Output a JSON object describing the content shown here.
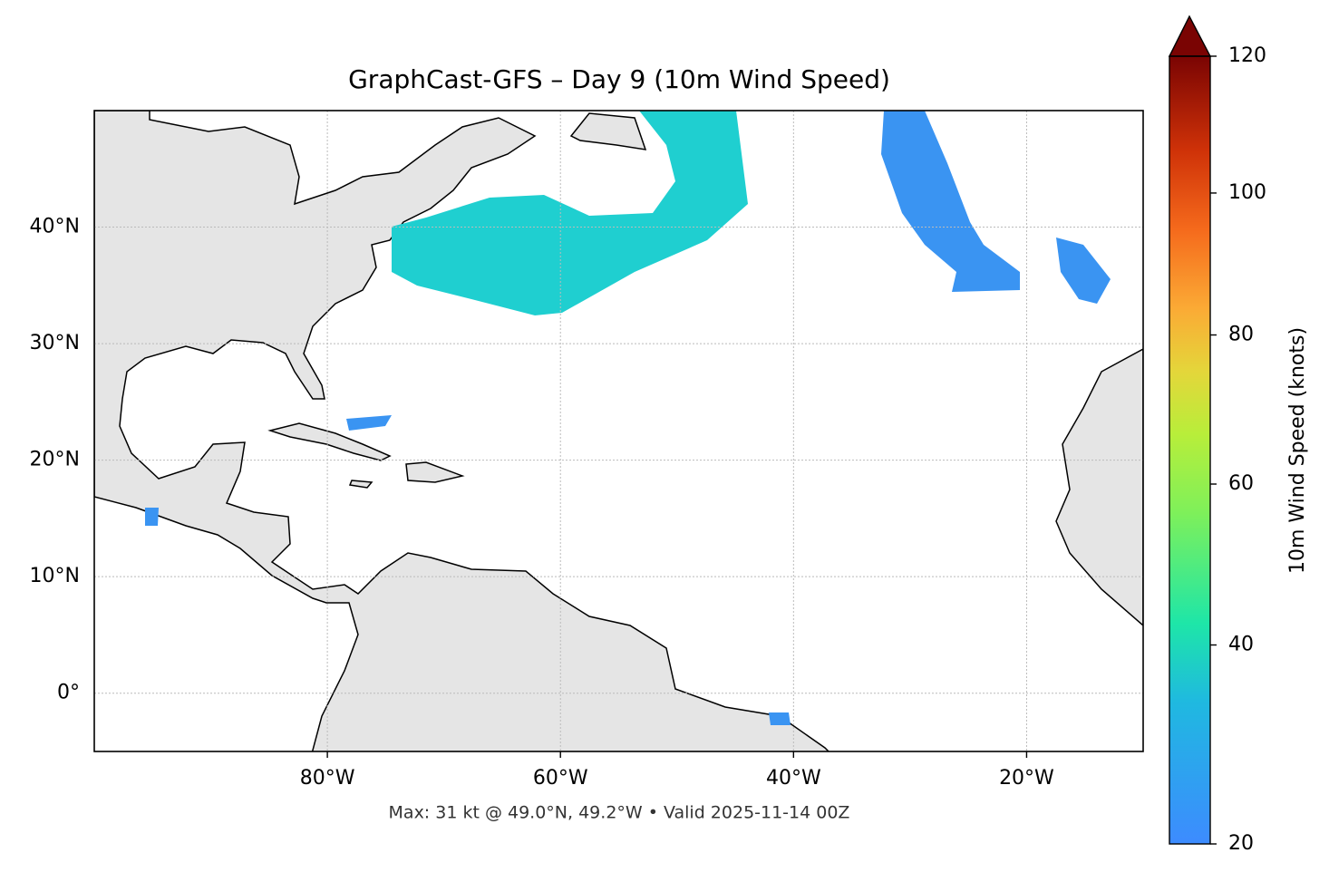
{
  "chart_data": {
    "type": "map",
    "title": "GraphCast-GFS – Day 9 (10m Wind Speed)",
    "footer": "Max: 31 kt @ 49.0°N, 49.2°W • Valid 2025-11-14 00Z",
    "xlim": [
      -100,
      -10
    ],
    "ylim": [
      -5,
      50
    ],
    "xticks": [
      {
        "value": -80,
        "label": "80°W"
      },
      {
        "value": -60,
        "label": "60°W"
      },
      {
        "value": -40,
        "label": "40°W"
      },
      {
        "value": -20,
        "label": "20°W"
      }
    ],
    "yticks": [
      {
        "value": 0,
        "label": "0°"
      },
      {
        "value": 10,
        "label": "10°N"
      },
      {
        "value": 20,
        "label": "20°N"
      },
      {
        "value": 30,
        "label": "30°N"
      },
      {
        "value": 40,
        "label": "40°N"
      }
    ],
    "grid": true,
    "colorbar": {
      "label": "10m Wind Speed (knots)",
      "lim": [
        20,
        120
      ],
      "ticks": [
        20,
        40,
        60,
        80,
        100,
        120
      ],
      "gamma": 0.855
    }
  }
}
